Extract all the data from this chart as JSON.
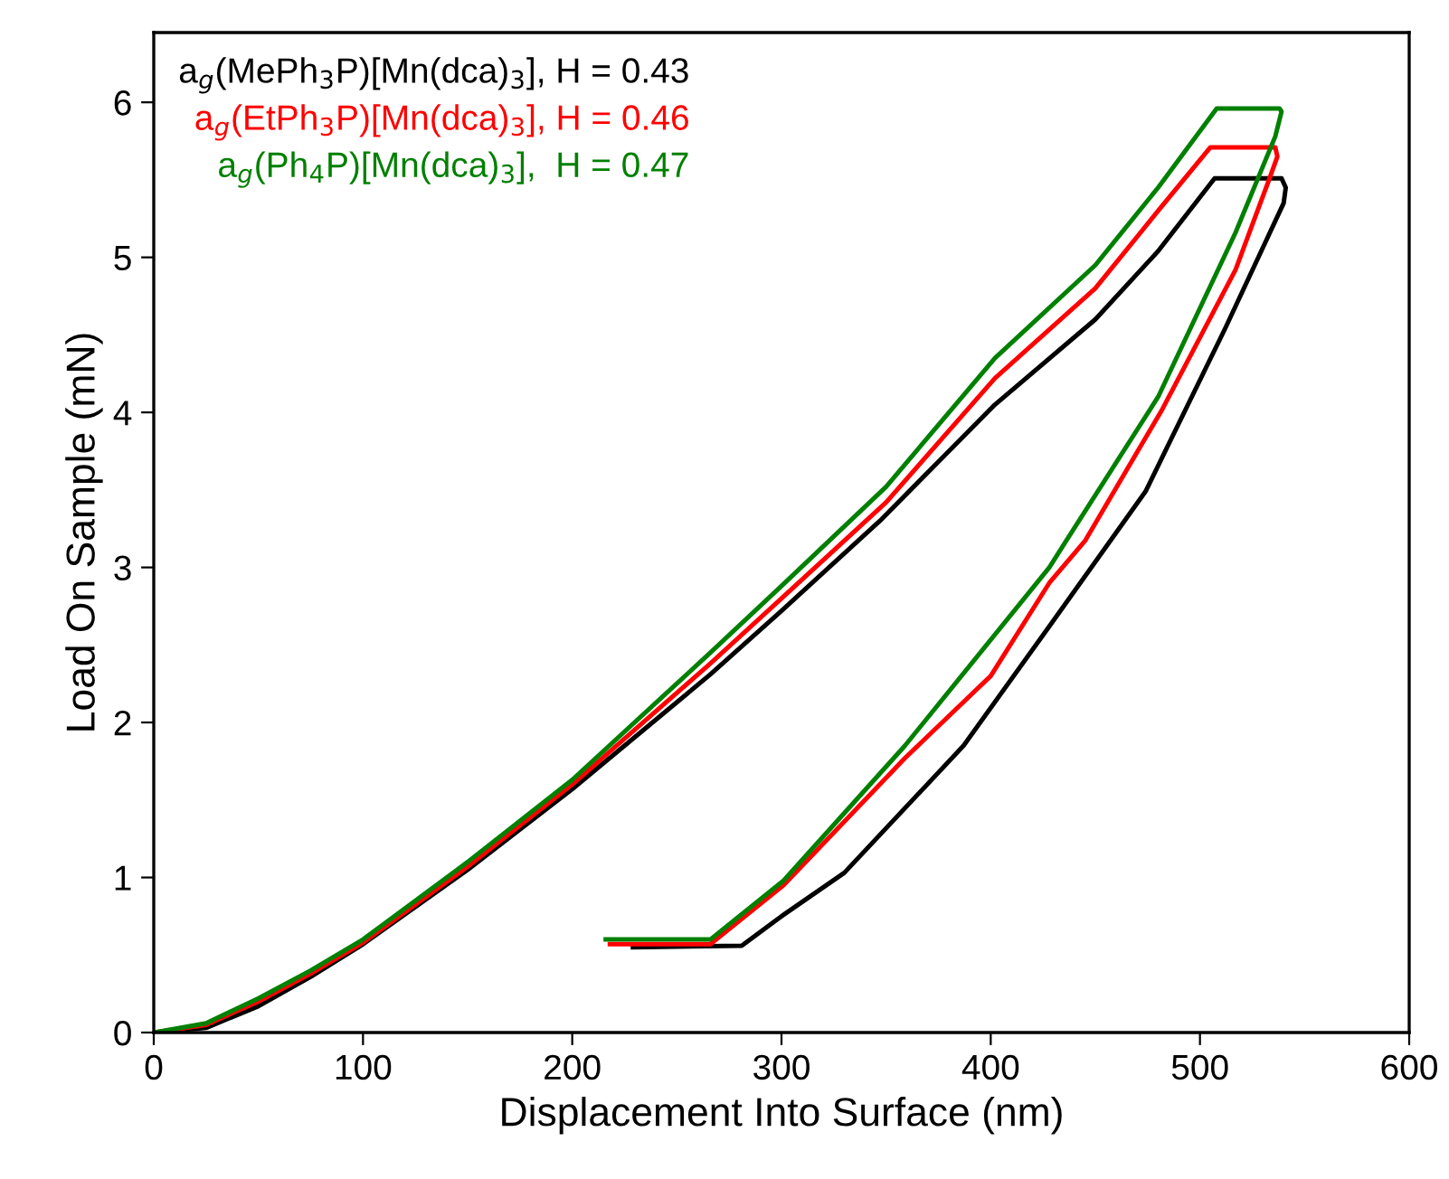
{
  "chart_data": {
    "type": "line",
    "xlabel": "Displacement Into Surface (nm)",
    "ylabel": "Load On Sample (mN)",
    "xlim": [
      0,
      600
    ],
    "ylim": [
      0,
      6.45
    ],
    "xticks": [
      0,
      100,
      200,
      300,
      400,
      500,
      600
    ],
    "yticks": [
      0,
      1,
      2,
      3,
      4,
      5,
      6
    ],
    "grid": false,
    "legend": "top left",
    "marker": "none",
    "line_style": "solid",
    "series": [
      {
        "name": "a$_{g}$(MePh$_{3}$P)[Mn(dca)$_{3}$], H = 0.43",
        "color": "#000000",
        "x": [
          0,
          25,
          50,
          75,
          100,
          150,
          200,
          266,
          300,
          347,
          402,
          450,
          480,
          507,
          539,
          541,
          540,
          512,
          474,
          428,
          387,
          330,
          300,
          281,
          229
        ],
        "values": [
          0,
          0.03,
          0.17,
          0.36,
          0.57,
          1.05,
          1.57,
          2.31,
          2.72,
          3.3,
          4.05,
          4.6,
          5.04,
          5.51,
          5.51,
          5.45,
          5.35,
          4.54,
          3.49,
          2.62,
          1.85,
          1.03,
          0.75,
          0.56,
          0.55
        ]
      },
      {
        "name": "a$_{g}$(EtPh$_{3}$P)[Mn(dca)$_{3}$], H = 0.46",
        "color": "#ff0000",
        "x": [
          0,
          25,
          50,
          75,
          100,
          150,
          200,
          266,
          300,
          350,
          402,
          450,
          480,
          505,
          536,
          537,
          533,
          517,
          482,
          445,
          428,
          400,
          359,
          301,
          266,
          218
        ],
        "values": [
          0,
          0.05,
          0.2,
          0.38,
          0.58,
          1.07,
          1.6,
          2.38,
          2.8,
          3.42,
          4.22,
          4.8,
          5.3,
          5.71,
          5.71,
          5.65,
          5.5,
          4.92,
          4.02,
          3.17,
          2.9,
          2.3,
          1.77,
          0.95,
          0.57,
          0.57
        ]
      },
      {
        "name": "a$_{g}$(Ph$_{4}$P)[Mn(dca)$_{3}$],  H = 0.47",
        "color": "#008000",
        "x": [
          0,
          25,
          50,
          75,
          100,
          150,
          200,
          266,
          300,
          350,
          402,
          450,
          480,
          508,
          538,
          539,
          536,
          517,
          480,
          436,
          428,
          359,
          301,
          266,
          216
        ],
        "values": [
          0,
          0.06,
          0.22,
          0.4,
          0.6,
          1.1,
          1.63,
          2.45,
          2.88,
          3.52,
          4.35,
          4.95,
          5.45,
          5.96,
          5.96,
          5.94,
          5.78,
          5.16,
          4.1,
          3.17,
          3.0,
          1.85,
          0.98,
          0.6,
          0.6
        ]
      }
    ]
  }
}
